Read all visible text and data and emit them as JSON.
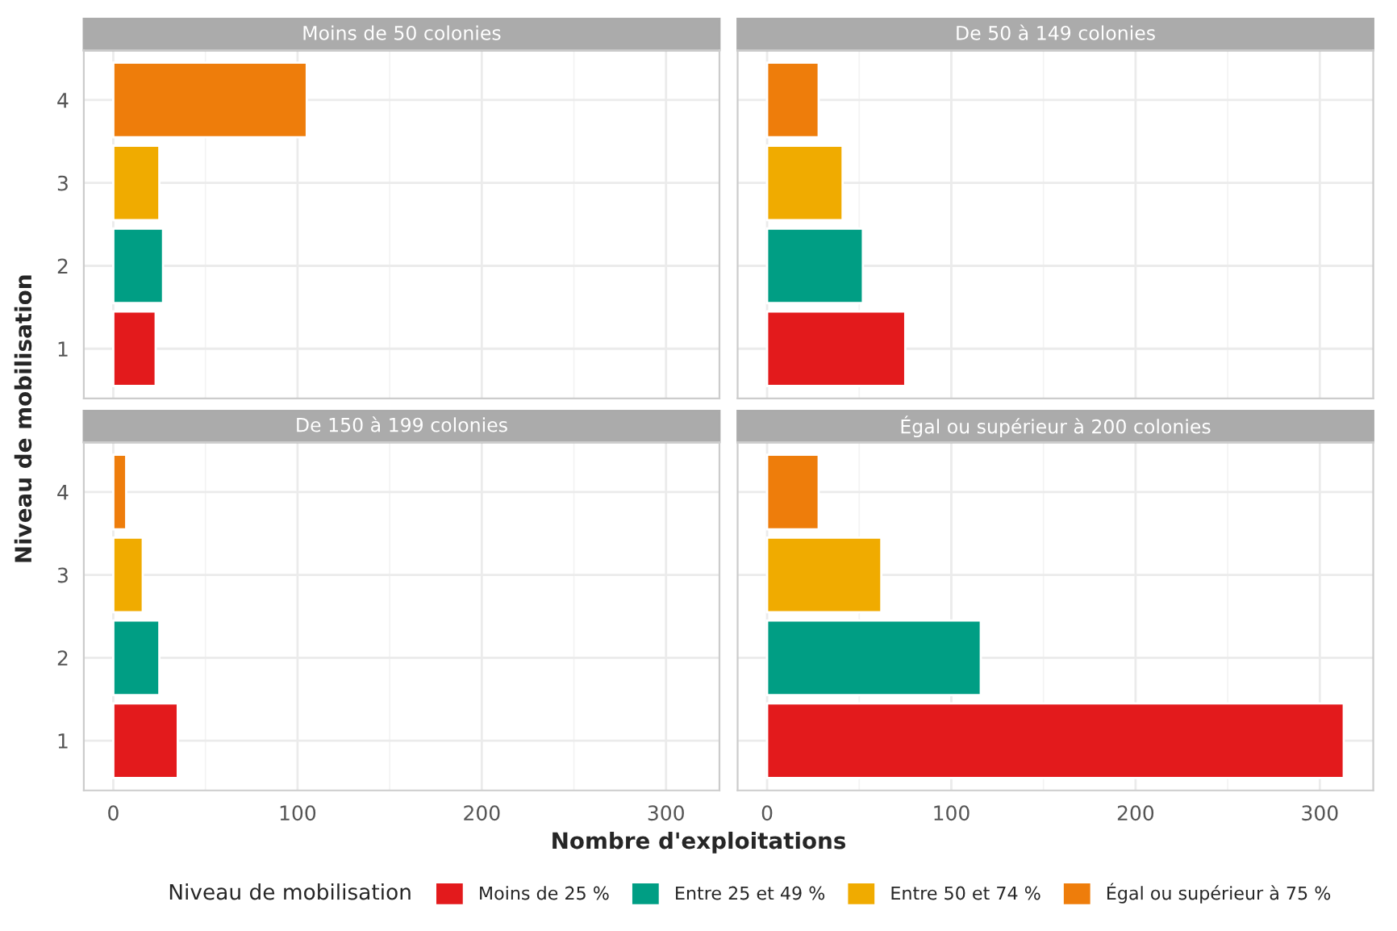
{
  "chart_data": [
    {
      "type": "bar",
      "orientation": "horizontal",
      "title": "Moins de 50 colonies",
      "xlabel": "Nombre d'exploitations",
      "ylabel": "Niveau de mobilisation",
      "legend_title": "Niveau de mobilisation",
      "legend": "bottom",
      "categories": [
        "4",
        "3",
        "2",
        "1"
      ],
      "series": [
        {
          "name": "Moins de 25 %",
          "color": "#e31a1c",
          "values": [
            null,
            null,
            null,
            23
          ]
        },
        {
          "name": "Entre 25 et 49 %",
          "color": "#009e84",
          "values": [
            null,
            null,
            27,
            null
          ]
        },
        {
          "name": "Entre 50 et 74 %",
          "color": "#f0ab00",
          "values": [
            null,
            25,
            null,
            null
          ]
        },
        {
          "name": "Égal ou supérieur à 75 %",
          "color": "#ee7d0b",
          "values": [
            105,
            null,
            null,
            null
          ]
        }
      ],
      "xlim": [
        -16,
        329
      ],
      "xticks": [
        0,
        100,
        200,
        300
      ],
      "grid": true,
      "tick_labels": "y"
    },
    {
      "type": "bar",
      "orientation": "horizontal",
      "title": "De 50 à 149 colonies",
      "categories": [
        "4",
        "3",
        "2",
        "1"
      ],
      "series": [
        {
          "color": "#e31a1c",
          "values": [
            null,
            null,
            null,
            75
          ]
        },
        {
          "color": "#009e84",
          "values": [
            null,
            null,
            52,
            null
          ]
        },
        {
          "color": "#f0ab00",
          "values": [
            null,
            41,
            null,
            null
          ]
        },
        {
          "color": "#ee7d0b",
          "values": [
            28,
            null,
            null,
            null
          ]
        }
      ],
      "xlim": [
        -16,
        329
      ],
      "xticks": [
        0,
        100,
        200,
        300
      ],
      "grid": true,
      "tick_labels": false
    },
    {
      "type": "bar",
      "orientation": "horizontal",
      "title": "De 150 à 199 colonies",
      "categories": [
        "4",
        "3",
        "2",
        "1"
      ],
      "series": [
        {
          "color": "#e31a1c",
          "values": [
            null,
            null,
            null,
            35
          ]
        },
        {
          "color": "#009e84",
          "values": [
            null,
            null,
            25,
            null
          ]
        },
        {
          "color": "#f0ab00",
          "values": [
            null,
            16,
            null,
            null
          ]
        },
        {
          "color": "#ee7d0b",
          "values": [
            7,
            null,
            null,
            null
          ]
        }
      ],
      "xlim": [
        -16,
        329
      ],
      "xticks": [
        0,
        100,
        200,
        300
      ],
      "grid": true
    },
    {
      "type": "bar",
      "orientation": "horizontal",
      "title": "Égal ou supérieur à 200 colonies",
      "categories": [
        "4",
        "3",
        "2",
        "1"
      ],
      "series": [
        {
          "color": "#e31a1c",
          "values": [
            null,
            null,
            null,
            313
          ]
        },
        {
          "color": "#009e84",
          "values": [
            null,
            null,
            116,
            null
          ]
        },
        {
          "color": "#f0ab00",
          "values": [
            null,
            62,
            null,
            null
          ]
        },
        {
          "color": "#ee7d0b",
          "values": [
            28,
            null,
            null,
            null
          ]
        }
      ],
      "xlim": [
        -16,
        329
      ],
      "xticks": [
        0,
        100,
        200,
        300
      ],
      "grid": true,
      "tick_labels": "x"
    }
  ]
}
